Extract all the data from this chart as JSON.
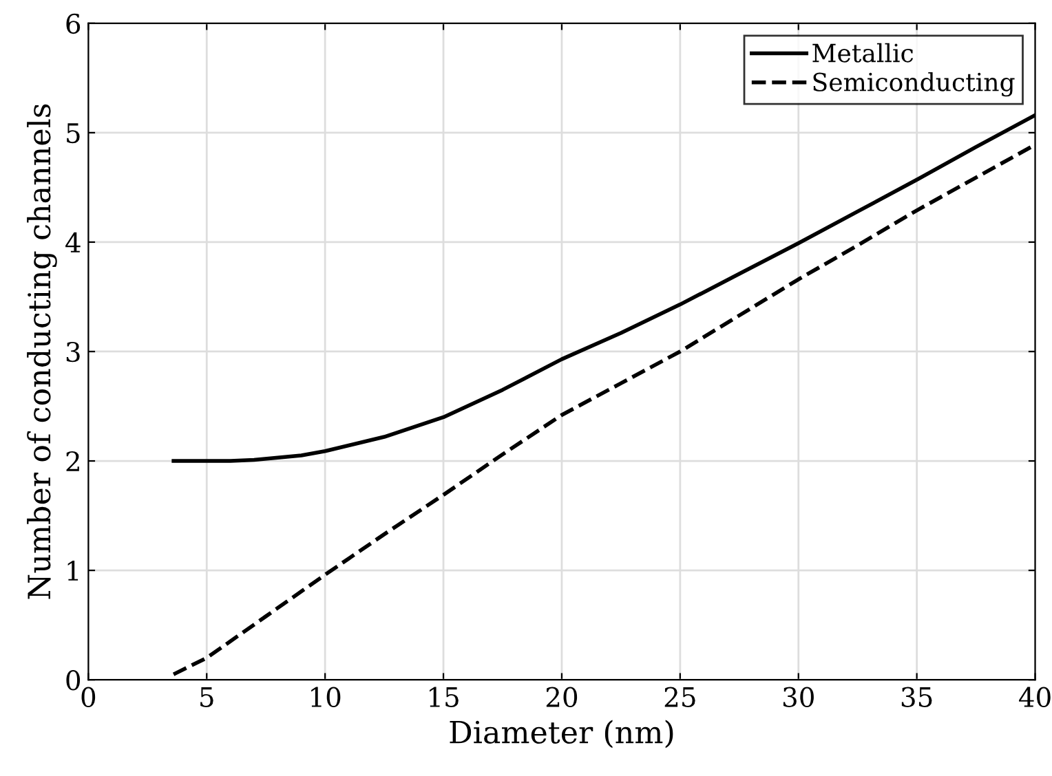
{
  "chart_data": {
    "type": "line",
    "xlabel": "Diameter (nm)",
    "ylabel": "Number of conducting channels",
    "xlim": [
      0,
      40
    ],
    "ylim": [
      0,
      6
    ],
    "xticks": [
      0,
      5,
      10,
      15,
      20,
      25,
      30,
      35,
      40
    ],
    "yticks": [
      0,
      1,
      2,
      3,
      4,
      5,
      6
    ],
    "grid": true,
    "legend": "top right",
    "series": [
      {
        "name": "Metallic",
        "color": "#000000",
        "line_style": "solid",
        "x": [
          3.6,
          5,
          6,
          7,
          8,
          9,
          10,
          12.5,
          15,
          17.5,
          20,
          22.5,
          25,
          27.5,
          30,
          32.5,
          35,
          37.5,
          40
        ],
        "values": [
          2.0,
          2.0,
          2.0,
          2.01,
          2.03,
          2.05,
          2.09,
          2.22,
          2.4,
          2.65,
          2.93,
          3.17,
          3.43,
          3.71,
          3.99,
          4.28,
          4.57,
          4.87,
          5.16
        ]
      },
      {
        "name": "Semiconducting",
        "color": "#000000",
        "line_style": "dashed",
        "x": [
          3.6,
          5,
          7.5,
          10,
          12.5,
          15,
          17.5,
          20,
          22.5,
          25,
          27.5,
          30,
          32.5,
          35,
          37.5,
          40
        ],
        "values": [
          0.05,
          0.2,
          0.58,
          0.96,
          1.33,
          1.69,
          2.06,
          2.42,
          2.71,
          3.0,
          3.33,
          3.66,
          3.97,
          4.29,
          4.59,
          4.89
        ]
      }
    ]
  }
}
